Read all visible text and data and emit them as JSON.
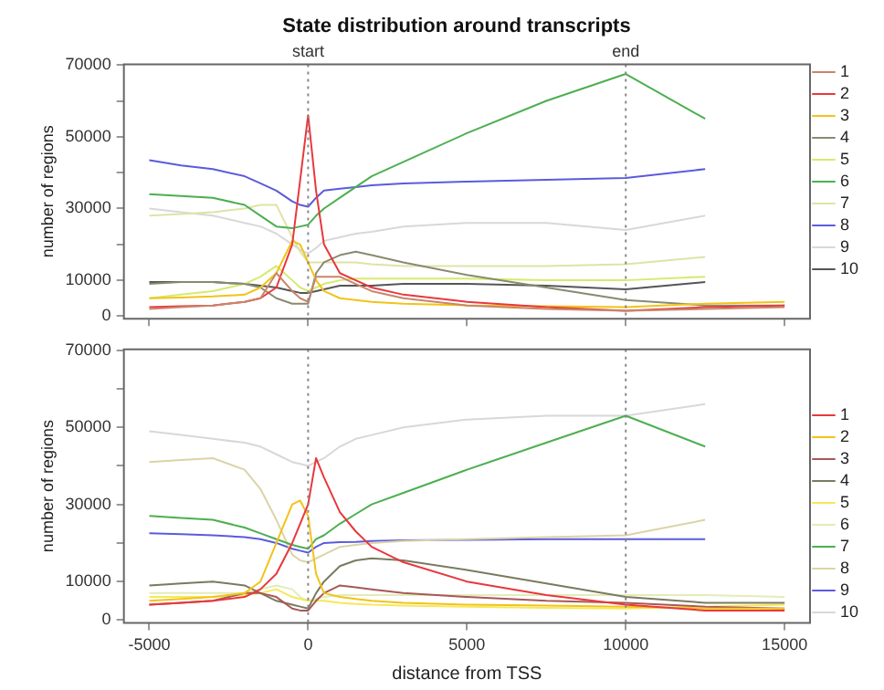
{
  "chart_data": [
    {
      "type": "line",
      "title": "State distribution around transcripts",
      "ylabel": "number of regions",
      "legend": "right",
      "marker": "none",
      "tick_labels": "y",
      "x": [
        -5000,
        -4000,
        -3000,
        -2000,
        -1500,
        -1000,
        -500,
        -250,
        0,
        250,
        500,
        1000,
        1500,
        2000,
        3000,
        5000,
        7500,
        10000,
        12500,
        15000
      ],
      "xlim": [
        -5800,
        15800
      ],
      "xticks": [
        -5000,
        0,
        5000,
        10000,
        15000
      ],
      "ylim": [
        -700,
        70200
      ],
      "yticks": [
        0,
        10000,
        {
          "value": 20000,
          "label": null
        },
        30000,
        {
          "value": 40000,
          "label": null
        },
        50000,
        {
          "value": 60000,
          "label": null
        },
        70000
      ],
      "ref_lines": [
        {
          "axis": "x",
          "value": 0,
          "label": "start",
          "line_style": "dotted"
        },
        {
          "axis": "x",
          "value": 10000,
          "label": "end",
          "line_style": "dotted"
        }
      ],
      "series": [
        {
          "name": "1",
          "color": "#c8866a",
          "values": [
            2000,
            2500,
            3000,
            4000,
            5000,
            12000,
            7000,
            5000,
            4000,
            11000,
            11000,
            11000,
            9000,
            7000,
            5000,
            3000,
            2000,
            1500,
            2000,
            2500
          ]
        },
        {
          "name": "2",
          "color": "#e8383d",
          "values": [
            2500,
            2800,
            3000,
            4000,
            5000,
            8000,
            20000,
            38000,
            56000,
            35000,
            20000,
            12000,
            10000,
            8000,
            6000,
            4000,
            2500,
            1500,
            2500,
            3000
          ]
        },
        {
          "name": "3",
          "color": "#f2c318",
          "values": [
            5000,
            5200,
            5500,
            6000,
            8000,
            12000,
            21000,
            20000,
            15000,
            10000,
            7000,
            5000,
            4500,
            4000,
            3500,
            3000,
            2800,
            2500,
            3500,
            4000
          ]
        },
        {
          "name": "4",
          "color": "#8a8a70",
          "values": [
            9000,
            9500,
            9500,
            9000,
            8000,
            5000,
            3500,
            3500,
            3500,
            12000,
            15000,
            17000,
            18000,
            17000,
            15000,
            11500,
            8000,
            4500,
            3000,
            3000
          ]
        },
        {
          "name": "5",
          "color": "#d6ea6c",
          "values": [
            5000,
            6000,
            7000,
            9000,
            11000,
            14000,
            10000,
            8000,
            7000,
            8000,
            9000,
            10000,
            10500,
            10500,
            10500,
            10500,
            10000,
            10000,
            11000,
            null
          ]
        },
        {
          "name": "6",
          "color": "#4caf50",
          "values": [
            34000,
            33500,
            33000,
            31000,
            28000,
            25000,
            24500,
            25000,
            25500,
            28000,
            30000,
            33000,
            36000,
            39000,
            43000,
            51000,
            60000,
            67500,
            55000,
            null
          ]
        },
        {
          "name": "7",
          "color": "#dfe3a8",
          "values": [
            28000,
            28500,
            29000,
            30000,
            31000,
            31000,
            22000,
            18000,
            15000,
            15000,
            15000,
            15000,
            15000,
            14500,
            14000,
            14000,
            14000,
            14500,
            16500,
            null
          ]
        },
        {
          "name": "8",
          "color": "#5b5bdc",
          "values": [
            43500,
            42000,
            41000,
            39000,
            37000,
            35000,
            32000,
            31000,
            30500,
            33000,
            35000,
            35500,
            36000,
            36500,
            37000,
            37500,
            38000,
            38500,
            41000,
            null
          ]
        },
        {
          "name": "9",
          "color": "#d8d8d8",
          "values": [
            30000,
            29000,
            28000,
            26000,
            25000,
            23000,
            20000,
            18500,
            17500,
            19000,
            21000,
            22000,
            23000,
            23500,
            25000,
            26000,
            26000,
            24000,
            28000,
            null
          ]
        },
        {
          "name": "10",
          "color": "#555555",
          "values": [
            9500,
            9500,
            9500,
            9000,
            8500,
            8000,
            7000,
            6500,
            6500,
            7000,
            7500,
            8500,
            8500,
            8500,
            9000,
            9000,
            8500,
            7500,
            9500,
            null
          ]
        }
      ]
    },
    {
      "type": "line",
      "xlabel": "distance from TSS",
      "ylabel": "number of regions",
      "legend": "right",
      "marker": "none",
      "x": [
        -5000,
        -4000,
        -3000,
        -2000,
        -1500,
        -1000,
        -500,
        -250,
        0,
        250,
        500,
        1000,
        1500,
        2000,
        3000,
        5000,
        7500,
        10000,
        12500,
        15000
      ],
      "xlim": [
        -5800,
        15800
      ],
      "xticks": [
        -5000,
        0,
        5000,
        10000,
        15000
      ],
      "ylim": [
        -700,
        70200
      ],
      "yticks": [
        0,
        10000,
        {
          "value": 20000,
          "label": null
        },
        30000,
        {
          "value": 40000,
          "label": null
        },
        50000,
        {
          "value": 60000,
          "label": null
        },
        70000
      ],
      "ref_lines": [
        {
          "axis": "x",
          "value": 0,
          "line_style": "dotted"
        },
        {
          "axis": "x",
          "value": 10000,
          "line_style": "dotted"
        }
      ],
      "series": [
        {
          "name": "1",
          "color": "#e8383d",
          "values": [
            4000,
            4500,
            5000,
            6000,
            8000,
            12000,
            20000,
            25000,
            30000,
            42000,
            37000,
            28000,
            23000,
            19000,
            15000,
            10000,
            6500,
            4000,
            2500,
            2500
          ]
        },
        {
          "name": "2",
          "color": "#f2c318",
          "values": [
            5000,
            5500,
            6000,
            7000,
            10000,
            20000,
            30000,
            31000,
            27000,
            12000,
            7000,
            6000,
            5500,
            5000,
            4500,
            4000,
            3800,
            3500,
            3000,
            3000
          ]
        },
        {
          "name": "3",
          "color": "#a85858",
          "values": [
            4000,
            4500,
            5000,
            7000,
            7000,
            6000,
            3000,
            2500,
            2500,
            5000,
            7000,
            9000,
            8500,
            8000,
            7000,
            6000,
            5000,
            4500,
            3500,
            3000
          ]
        },
        {
          "name": "4",
          "color": "#7a7a60",
          "values": [
            9000,
            9500,
            10000,
            9000,
            7000,
            5000,
            4000,
            3500,
            3000,
            7000,
            10000,
            14000,
            15500,
            16000,
            15500,
            13000,
            9500,
            6000,
            4500,
            4500
          ]
        },
        {
          "name": "5",
          "color": "#f5e85a",
          "values": [
            6000,
            6000,
            6000,
            6500,
            7000,
            8000,
            6000,
            5500,
            5000,
            5000,
            5000,
            4500,
            4200,
            4000,
            3800,
            3500,
            3200,
            3000,
            3500,
            4000
          ]
        },
        {
          "name": "6",
          "color": "#e3ecb8",
          "values": [
            7000,
            7000,
            7000,
            7000,
            8000,
            9000,
            8000,
            6000,
            5000,
            5500,
            6000,
            6500,
            6500,
            6500,
            6500,
            6500,
            6500,
            6500,
            6500,
            6000
          ]
        },
        {
          "name": "7",
          "color": "#4caf50",
          "values": [
            27000,
            26500,
            26000,
            24000,
            22500,
            21000,
            19500,
            19000,
            18500,
            21000,
            22000,
            25000,
            27500,
            30000,
            33000,
            39000,
            46000,
            53000,
            45000,
            null
          ]
        },
        {
          "name": "8",
          "color": "#dcd3a6",
          "values": [
            41000,
            41500,
            42000,
            39000,
            34000,
            26000,
            17000,
            15500,
            15000,
            16000,
            17000,
            19000,
            19500,
            20000,
            20500,
            21000,
            21500,
            22000,
            26000,
            null
          ]
        },
        {
          "name": "9",
          "color": "#5b5bdc",
          "values": [
            22500,
            22300,
            22000,
            21500,
            21000,
            20000,
            18500,
            18000,
            17500,
            19000,
            20000,
            20200,
            20300,
            20500,
            20700,
            20800,
            21000,
            21000,
            21000,
            null
          ]
        },
        {
          "name": "10",
          "color": "#d8d8d8",
          "values": [
            49000,
            48000,
            47000,
            46000,
            45000,
            43000,
            41000,
            40500,
            40000,
            41000,
            42000,
            45000,
            47000,
            48000,
            50000,
            52000,
            53000,
            53000,
            56000,
            null
          ]
        }
      ]
    }
  ]
}
